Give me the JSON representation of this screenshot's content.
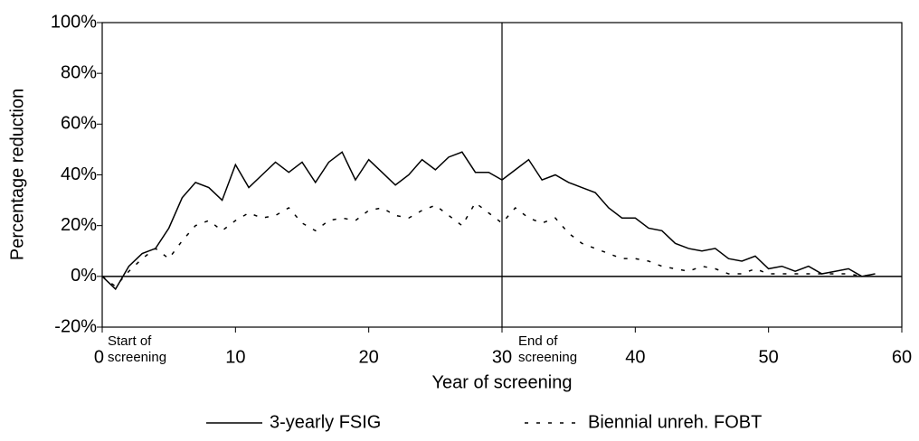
{
  "chart_data": {
    "type": "line",
    "x_label": "Year of screening",
    "y_label": "Percentage reduction",
    "x": [
      0,
      1,
      2,
      3,
      4,
      5,
      6,
      7,
      8,
      9,
      10,
      11,
      12,
      13,
      14,
      15,
      16,
      17,
      18,
      19,
      20,
      21,
      22,
      23,
      24,
      25,
      26,
      27,
      28,
      29,
      30,
      31,
      32,
      33,
      34,
      35,
      36,
      37,
      38,
      39,
      40,
      41,
      42,
      43,
      44,
      45,
      46,
      47,
      48,
      49,
      50,
      51,
      52,
      53,
      54,
      55,
      56,
      57,
      58
    ],
    "series": [
      {
        "name": "3-yearly FSIG",
        "color": "#000000",
        "dash": "solid",
        "values": [
          0,
          -5,
          4,
          9,
          11,
          19,
          31,
          37,
          35,
          30,
          44,
          35,
          40,
          45,
          41,
          45,
          37,
          45,
          49,
          38,
          46,
          41,
          36,
          40,
          46,
          42,
          47,
          49,
          41,
          41,
          38,
          42,
          46,
          38,
          40,
          37,
          35,
          33,
          27,
          23,
          23,
          19,
          18,
          13,
          11,
          10,
          11,
          7,
          6,
          8,
          3,
          4,
          2,
          4,
          1,
          2,
          3,
          0,
          1
        ]
      },
      {
        "name": "Biennial unreh. FOBT",
        "color": "#000000",
        "dash": "dotted",
        "values": [
          0,
          -4,
          2,
          7,
          11,
          7,
          14,
          20,
          22,
          18,
          22,
          25,
          23,
          24,
          27,
          21,
          18,
          22,
          23,
          22,
          26,
          27,
          24,
          23,
          26,
          28,
          24,
          20,
          29,
          25,
          21,
          27,
          23,
          21,
          23,
          17,
          13,
          11,
          9,
          7,
          7,
          6,
          4,
          3,
          2,
          4,
          3,
          1,
          1,
          3,
          1,
          1,
          1,
          1,
          1,
          1,
          1,
          0,
          1
        ]
      }
    ],
    "xlim": [
      0,
      60
    ],
    "xticks": [
      0,
      10,
      20,
      30,
      40,
      50,
      60
    ],
    "ylim": [
      -20,
      100
    ],
    "yticks": [
      {
        "value": -20,
        "label": "-20%"
      },
      {
        "value": 0,
        "label": "0%"
      },
      {
        "value": 20,
        "label": "20%"
      },
      {
        "value": 40,
        "label": "40%"
      },
      {
        "value": 60,
        "label": "60%"
      },
      {
        "value": 80,
        "label": "80%"
      },
      {
        "value": 100,
        "label": "100%"
      }
    ],
    "vline": 30,
    "hline": 0,
    "annotations": [
      [
        "Start of",
        "screening"
      ],
      [
        "End of",
        "screening"
      ]
    ],
    "legend": "bottom"
  }
}
